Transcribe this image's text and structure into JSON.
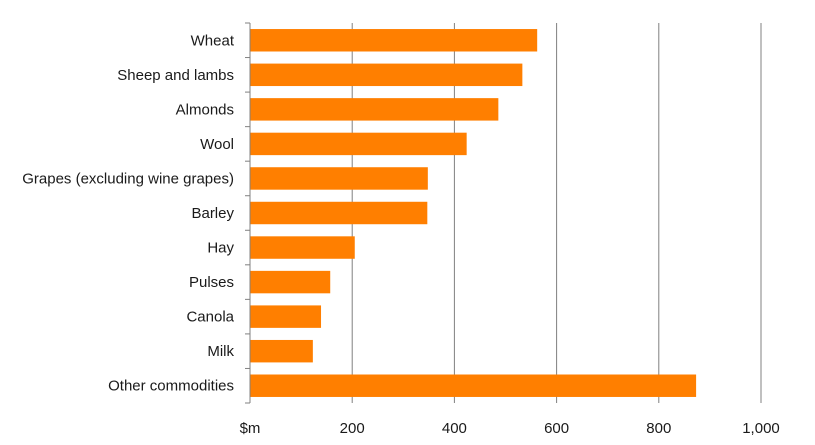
{
  "chart_data": {
    "type": "bar",
    "orientation": "horizontal",
    "categories": [
      "Wheat",
      "Sheep and lambs",
      "Almonds",
      "Wool",
      "Grapes (excluding wine grapes)",
      "Barley",
      "Hay",
      "Pulses",
      "Canola",
      "Milk",
      "Other commodities"
    ],
    "values": [
      562,
      533,
      486,
      424,
      348,
      347,
      205,
      157,
      139,
      123,
      873
    ],
    "title": "",
    "xlabel": "",
    "ylabel": "",
    "xlim": [
      0,
      1000
    ],
    "x_ticks": [
      "$m",
      "200",
      "400",
      "600",
      "800",
      "1,000"
    ],
    "grid": "vertical",
    "legend": "none",
    "bar_color": "#FF7F00",
    "grid_color": "#808080"
  }
}
